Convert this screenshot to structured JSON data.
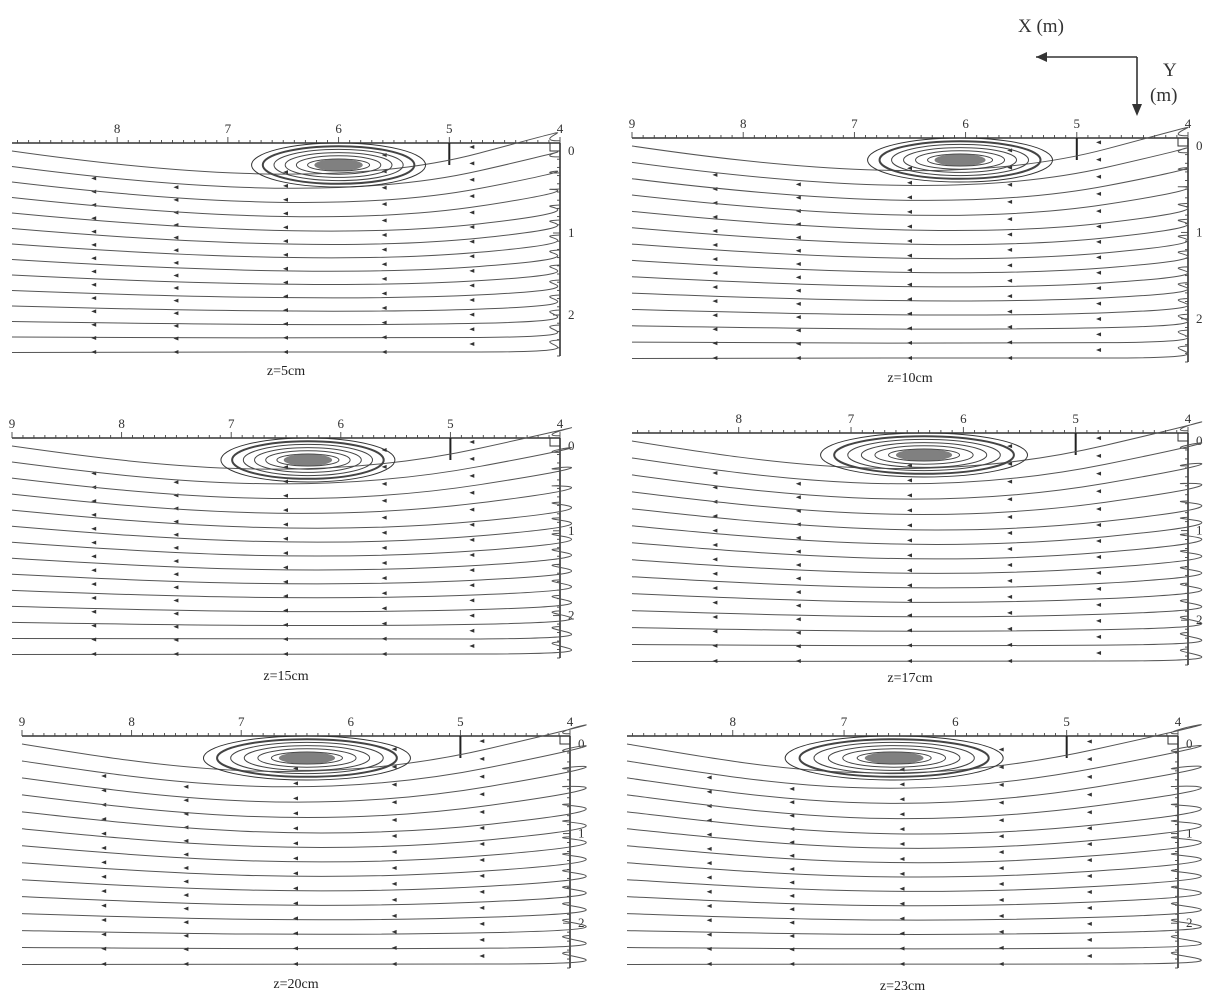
{
  "indicator": {
    "x_label": "X (m)",
    "y_label_line1": "Y",
    "y_label_line2": "(m)"
  },
  "panels": [
    {
      "caption": "z=5cm",
      "x_ticks": [
        "8",
        "7",
        "6",
        "5",
        "4"
      ],
      "y_ticks": [
        "0",
        "1",
        "2"
      ],
      "vortex_center_x": 6.0,
      "vortex_strength": 0.7
    },
    {
      "caption": "z=10cm",
      "x_ticks": [
        "9",
        "8",
        "7",
        "6",
        "5",
        "4"
      ],
      "y_ticks": [
        "0",
        "1",
        "2"
      ],
      "vortex_center_x": 6.05,
      "vortex_strength": 0.75
    },
    {
      "caption": "z=15cm",
      "x_ticks": [
        "9",
        "8",
        "7",
        "6",
        "5",
        "4"
      ],
      "y_ticks": [
        "0",
        "1",
        "2"
      ],
      "vortex_center_x": 6.3,
      "vortex_strength": 0.7
    },
    {
      "caption": "z=17cm",
      "x_ticks": [
        "8",
        "7",
        "6",
        "5",
        "4"
      ],
      "y_ticks": [
        "0",
        "1",
        "2"
      ],
      "vortex_center_x": 6.35,
      "vortex_strength": 0.85
    },
    {
      "caption": "z=20cm",
      "x_ticks": [
        "9",
        "8",
        "7",
        "6",
        "5",
        "4"
      ],
      "y_ticks": [
        "0",
        "1",
        "2"
      ],
      "vortex_center_x": 6.4,
      "vortex_strength": 0.85
    },
    {
      "caption": "z=23cm",
      "x_ticks": [
        "8",
        "7",
        "6",
        "5",
        "4"
      ],
      "y_ticks": [
        "0",
        "1",
        "2"
      ],
      "vortex_center_x": 6.55,
      "vortex_strength": 0.9
    }
  ]
}
